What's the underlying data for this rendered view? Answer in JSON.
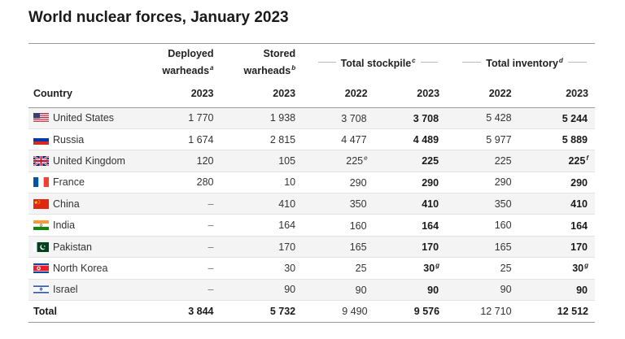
{
  "title": "World nuclear forces, January 2023",
  "headers": {
    "deployed": "Deployed",
    "deployed2": "warheads",
    "deployed_note": "a",
    "stored": "Stored",
    "stored2": "warheads",
    "stored_note": "b",
    "total_stockpile": "Total stockpile",
    "total_stockpile_note": "c",
    "total_inventory": "Total inventory",
    "total_inventory_note": "d",
    "country": "Country",
    "y_deployed": "2023",
    "y_stored": "2023",
    "y_ts22": "2022",
    "y_ts23": "2023",
    "y_ti22": "2022",
    "y_ti23": "2023"
  },
  "rows": [
    {
      "country": "United States",
      "flag": "us-flag",
      "deployed": "1 770",
      "stored": "1 938",
      "ts22": "3 708",
      "ts22_note": "",
      "ts23": "3 708",
      "ts23_note": "",
      "ti22": "5 428",
      "ti23": "5 244",
      "ti23_note": ""
    },
    {
      "country": "Russia",
      "flag": "russia-flag",
      "deployed": "1 674",
      "stored": "2 815",
      "ts22": "4 477",
      "ts22_note": "",
      "ts23": "4 489",
      "ts23_note": "",
      "ti22": "5 977",
      "ti23": "5 889",
      "ti23_note": ""
    },
    {
      "country": "United Kingdom",
      "flag": "uk-flag",
      "deployed": "120",
      "stored": "105",
      "ts22": "225",
      "ts22_note": "e",
      "ts23": "225",
      "ts23_note": "",
      "ti22": "225",
      "ti23": "225",
      "ti23_note": "f"
    },
    {
      "country": "France",
      "flag": "france-flag",
      "deployed": "280",
      "stored": "10",
      "ts22": "290",
      "ts22_note": "",
      "ts23": "290",
      "ts23_note": "",
      "ti22": "290",
      "ti23": "290",
      "ti23_note": ""
    },
    {
      "country": "China",
      "flag": "china-flag",
      "deployed": "–",
      "stored": "410",
      "ts22": "350",
      "ts22_note": "",
      "ts23": "410",
      "ts23_note": "",
      "ti22": "350",
      "ti23": "410",
      "ti23_note": ""
    },
    {
      "country": "India",
      "flag": "india-flag",
      "deployed": "–",
      "stored": "164",
      "ts22": "160",
      "ts22_note": "",
      "ts23": "164",
      "ts23_note": "",
      "ti22": "160",
      "ti23": "164",
      "ti23_note": ""
    },
    {
      "country": "Pakistan",
      "flag": "pakistan-flag",
      "deployed": "–",
      "stored": "170",
      "ts22": "165",
      "ts22_note": "",
      "ts23": "170",
      "ts23_note": "",
      "ti22": "165",
      "ti23": "170",
      "ti23_note": ""
    },
    {
      "country": "North Korea",
      "flag": "north-korea-flag",
      "deployed": "–",
      "stored": "30",
      "ts22": "25",
      "ts22_note": "",
      "ts23": "30",
      "ts23_note": "g",
      "ti22": "25",
      "ti23": "30",
      "ti23_note": "g"
    },
    {
      "country": "Israel",
      "flag": "israel-flag",
      "deployed": "–",
      "stored": "90",
      "ts22": "90",
      "ts22_note": "",
      "ts23": "90",
      "ts23_note": "",
      "ti22": "90",
      "ti23": "90",
      "ti23_note": ""
    }
  ],
  "total": {
    "label": "Total",
    "deployed": "3 844",
    "stored": "5 732",
    "ts22": "9 490",
    "ts23": "9 576",
    "ti22": "12 710",
    "ti23": "12 512"
  }
}
